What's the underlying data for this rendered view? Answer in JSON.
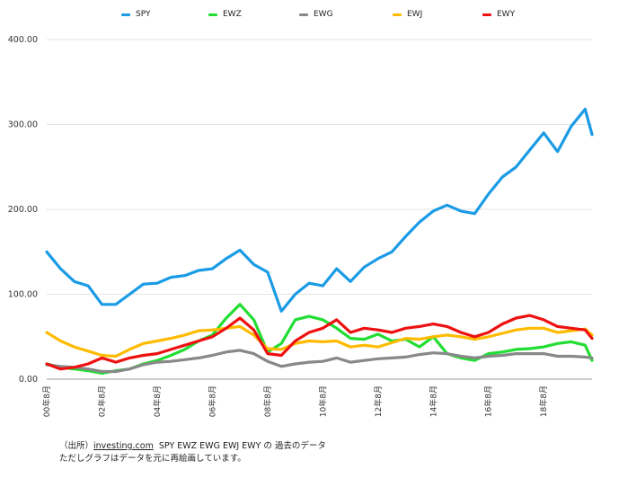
{
  "chart_data": {
    "type": "line",
    "title": "",
    "xlabel": "",
    "ylabel": "",
    "ylim": [
      0,
      400
    ],
    "y_ticks": [
      "400.00",
      "300.00",
      "200.00",
      "100.00",
      "0.00"
    ],
    "x_tick_labels": [
      "00年8月",
      "02年8月",
      "04年8月",
      "06年8月",
      "08年8月",
      "10年8月",
      "12年8月",
      "14年8月",
      "16年8月",
      "18年8月"
    ],
    "grid": "horizontal",
    "legend_position": "top",
    "x": [
      "2000-08",
      "2001-02",
      "2001-08",
      "2002-02",
      "2002-08",
      "2003-02",
      "2003-08",
      "2004-02",
      "2004-08",
      "2005-02",
      "2005-08",
      "2006-02",
      "2006-08",
      "2007-02",
      "2007-08",
      "2008-02",
      "2008-08",
      "2009-02",
      "2009-08",
      "2010-02",
      "2010-08",
      "2011-02",
      "2011-08",
      "2012-02",
      "2012-08",
      "2013-02",
      "2013-08",
      "2014-02",
      "2014-08",
      "2015-02",
      "2015-08",
      "2016-02",
      "2016-08",
      "2017-02",
      "2017-08",
      "2018-02",
      "2018-08",
      "2019-02",
      "2019-08",
      "2020-02",
      "2020-05"
    ],
    "series": [
      {
        "name": "SPY",
        "color": "#1a9be6",
        "values": [
          150,
          130,
          115,
          110,
          88,
          88,
          100,
          112,
          113,
          120,
          122,
          128,
          130,
          142,
          152,
          135,
          126,
          80,
          100,
          113,
          110,
          130,
          115,
          132,
          142,
          150,
          168,
          185,
          198,
          205,
          198,
          195,
          218,
          238,
          250,
          270,
          290,
          268,
          298,
          318,
          288
        ]
      },
      {
        "name": "EWZ",
        "color": "#22dd33",
        "values": [
          18,
          14,
          12,
          10,
          7,
          10,
          12,
          18,
          22,
          28,
          35,
          45,
          52,
          72,
          88,
          70,
          32,
          42,
          70,
          74,
          70,
          60,
          48,
          47,
          53,
          45,
          47,
          38,
          50,
          30,
          25,
          22,
          30,
          32,
          35,
          36,
          38,
          42,
          44,
          40,
          22
        ]
      },
      {
        "name": "EWG",
        "color": "#888888",
        "values": [
          17,
          15,
          14,
          12,
          9,
          9,
          12,
          17,
          20,
          21,
          23,
          25,
          28,
          32,
          34,
          30,
          21,
          15,
          18,
          20,
          21,
          25,
          20,
          22,
          24,
          25,
          26,
          29,
          31,
          30,
          27,
          25,
          27,
          28,
          30,
          30,
          30,
          27,
          27,
          26,
          25
        ]
      },
      {
        "name": "EWJ",
        "color": "#ffbb00",
        "values": [
          55,
          45,
          38,
          33,
          28,
          27,
          35,
          42,
          45,
          48,
          52,
          57,
          58,
          60,
          62,
          52,
          36,
          35,
          42,
          45,
          44,
          45,
          38,
          40,
          38,
          43,
          48,
          47,
          50,
          52,
          50,
          47,
          50,
          54,
          58,
          60,
          60,
          55,
          57,
          59,
          52
        ]
      },
      {
        "name": "EWY",
        "color": "#ee1111",
        "values": [
          18,
          12,
          14,
          18,
          25,
          20,
          25,
          28,
          30,
          35,
          40,
          45,
          50,
          60,
          72,
          58,
          30,
          28,
          45,
          55,
          60,
          70,
          55,
          60,
          58,
          55,
          60,
          62,
          65,
          62,
          55,
          50,
          55,
          65,
          72,
          75,
          70,
          62,
          60,
          58,
          48
        ]
      }
    ]
  },
  "source_line1": {
    "prefix": "（出所）",
    "link": "investing.com",
    "rest": "SPY EWZ EWG EWJ EWY の 過去のデータ"
  },
  "source_line2": "ただしグラフはデータを元に再絵画しています。"
}
